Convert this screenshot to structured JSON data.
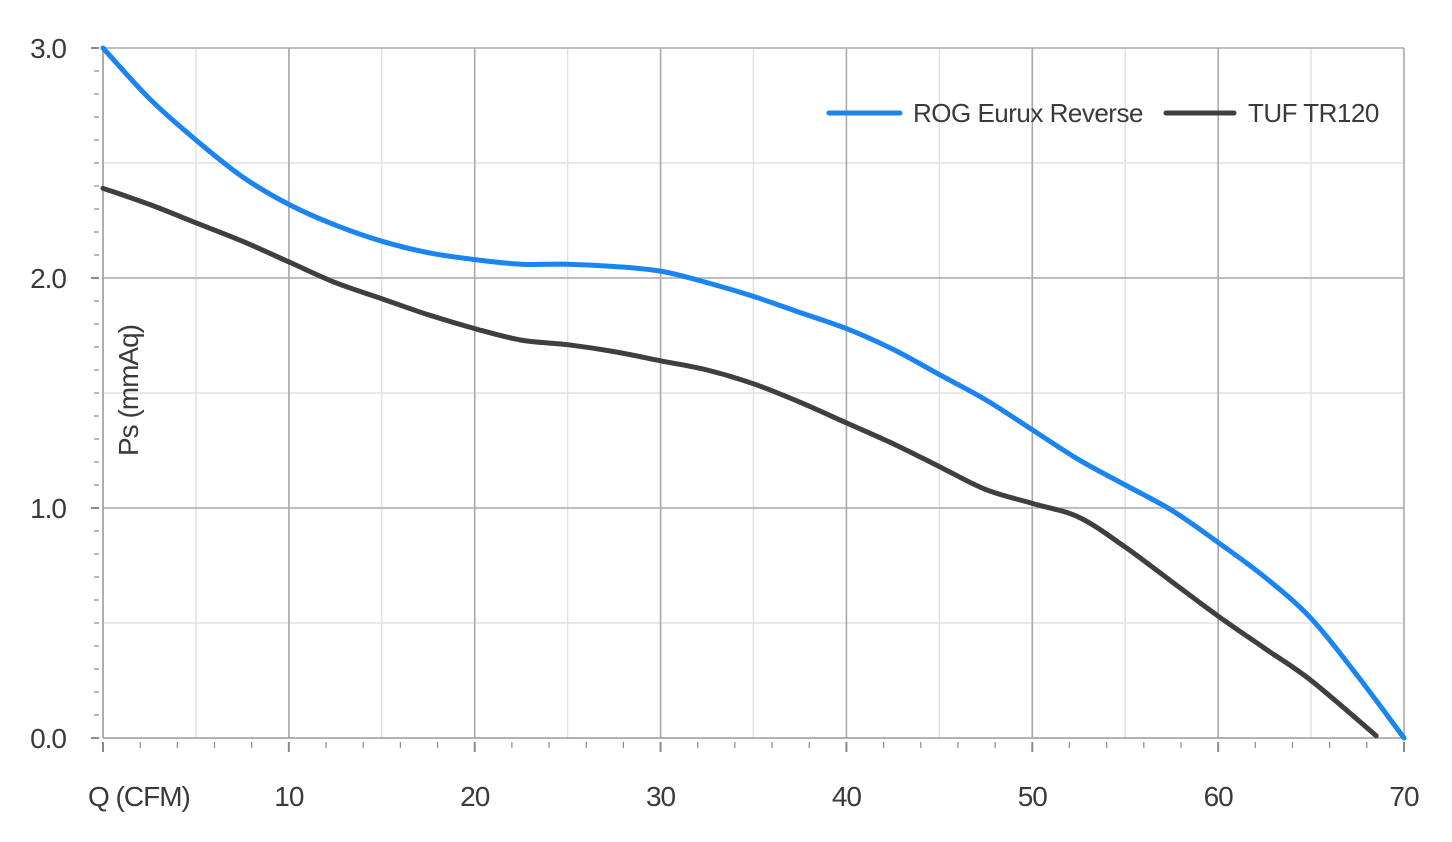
{
  "chart_data": {
    "type": "line",
    "xlabel": "Q (CFM)",
    "ylabel": "Ps (mmAq)",
    "xlim": [
      0,
      70
    ],
    "ylim": [
      0,
      3
    ],
    "x_ticks": [
      10,
      20,
      30,
      40,
      50,
      60,
      70
    ],
    "y_ticks": [
      "0.0",
      "1.0",
      "2.0",
      "3.0"
    ],
    "grid": true,
    "legend_position": "top-right",
    "series": [
      {
        "name": "ROG Eurux Reverse",
        "color": "#1a84f0",
        "x": [
          0,
          2.5,
          5,
          7.5,
          10,
          12.5,
          15,
          17.5,
          20,
          22.5,
          25,
          27.5,
          30,
          32.5,
          35,
          37.5,
          40,
          42.5,
          45,
          47.5,
          50,
          52.5,
          55,
          57.5,
          60,
          62.5,
          65,
          67.5,
          70
        ],
        "y": [
          3.0,
          2.78,
          2.6,
          2.44,
          2.32,
          2.23,
          2.16,
          2.11,
          2.08,
          2.06,
          2.06,
          2.05,
          2.03,
          1.98,
          1.92,
          1.85,
          1.78,
          1.69,
          1.58,
          1.47,
          1.34,
          1.21,
          1.1,
          0.99,
          0.85,
          0.7,
          0.52,
          0.27,
          0.0
        ]
      },
      {
        "name": "TUF TR120",
        "color": "#3f3f41",
        "x": [
          0,
          2.5,
          5,
          7.5,
          10,
          12.5,
          15,
          17.5,
          20,
          22.5,
          25,
          27.5,
          30,
          32.5,
          35,
          37.5,
          40,
          42.5,
          45,
          47.5,
          50,
          52.5,
          55,
          57.5,
          60,
          62.5,
          65,
          68.5
        ],
        "y": [
          2.39,
          2.32,
          2.24,
          2.16,
          2.07,
          1.98,
          1.91,
          1.84,
          1.78,
          1.73,
          1.71,
          1.68,
          1.64,
          1.6,
          1.54,
          1.46,
          1.37,
          1.28,
          1.18,
          1.08,
          1.02,
          0.96,
          0.83,
          0.68,
          0.53,
          0.39,
          0.25,
          0.01
        ]
      }
    ]
  }
}
